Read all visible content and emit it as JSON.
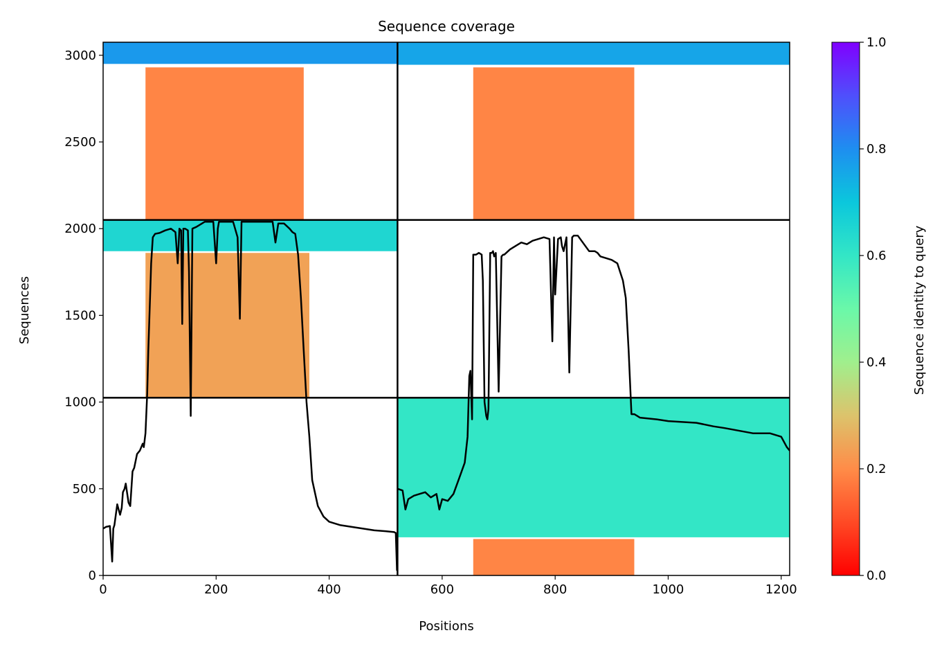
{
  "chart_data": {
    "type": "heatmap",
    "title": "Sequence coverage",
    "xlabel": "Positions",
    "ylabel": "Sequences",
    "xlim": [
      0,
      1215
    ],
    "ylim": [
      0,
      3075
    ],
    "xticks": [
      0,
      200,
      400,
      600,
      800,
      1000,
      1200
    ],
    "yticks": [
      0,
      500,
      1000,
      1500,
      2000,
      2500,
      3000
    ],
    "colorbar": {
      "label": "Sequence identity to query",
      "range": [
        0.0,
        1.0
      ],
      "ticks": [
        "0.0",
        "0.2",
        "0.4",
        "0.6",
        "0.8",
        "1.0"
      ],
      "colormap": "rainbow_r"
    },
    "chain_boundaries": {
      "vertical_x": [
        521
      ],
      "horizontal_y": [
        1025,
        2050
      ]
    },
    "blocks": [
      {
        "name": "chain1-query-cluster",
        "x": [
          0,
          521
        ],
        "y": [
          2950,
          3075
        ],
        "identity": 0.78
      },
      {
        "name": "chain1-main",
        "x": [
          75,
          355
        ],
        "y": [
          2050,
          2930
        ],
        "identity": 0.19
      },
      {
        "name": "chain2-query-cluster",
        "x": [
          521,
          1215
        ],
        "y": [
          2945,
          3075
        ],
        "identity": 0.76
      },
      {
        "name": "chain2-main",
        "x": [
          655,
          940
        ],
        "y": [
          2050,
          2930
        ],
        "identity": 0.19
      },
      {
        "name": "chain3-query-cluster",
        "x": [
          0,
          521
        ],
        "y": [
          1870,
          2050
        ],
        "identity": 0.65
      },
      {
        "name": "chain3-main",
        "x": [
          75,
          365
        ],
        "y": [
          1025,
          1860
        ],
        "identity": 0.24
      },
      {
        "name": "chain3-ext-cluster",
        "x": [
          521,
          1215
        ],
        "y": [
          220,
          1025
        ],
        "identity": 0.6
      },
      {
        "name": "chain3-tail",
        "x": [
          655,
          940
        ],
        "y": [
          0,
          210
        ],
        "identity": 0.19
      }
    ],
    "series": [
      {
        "type": "line",
        "color": "#000000",
        "x": [
          0,
          5,
          12,
          16,
          18,
          20,
          25,
          30,
          33,
          35,
          38,
          40,
          45,
          48,
          52,
          55,
          60,
          65,
          70,
          72,
          75,
          78,
          80,
          83,
          85,
          88,
          92,
          100,
          110,
          120,
          128,
          132,
          135,
          138,
          140,
          142,
          145,
          150,
          152,
          155,
          158,
          165,
          180,
          195,
          200,
          203,
          205,
          210,
          220,
          230,
          238,
          242,
          245,
          250,
          260,
          280,
          290,
          300,
          305,
          310,
          320,
          330,
          335,
          340,
          345,
          350,
          355,
          360,
          365,
          370,
          380,
          390,
          400,
          420,
          440,
          460,
          480,
          500,
          515,
          518,
          520,
          521
        ],
        "y": [
          270,
          280,
          285,
          80,
          270,
          290,
          410,
          350,
          390,
          480,
          500,
          530,
          420,
          400,
          600,
          620,
          700,
          720,
          760,
          740,
          820,
          1050,
          1300,
          1600,
          1800,
          1950,
          1970,
          1975,
          1990,
          2000,
          1980,
          1800,
          2000,
          1990,
          1450,
          2000,
          2000,
          1990,
          1750,
          920,
          2000,
          2010,
          2040,
          2040,
          1800,
          2000,
          2040,
          2040,
          2040,
          2040,
          1950,
          1480,
          2040,
          2040,
          2040,
          2040,
          2040,
          2040,
          1920,
          2030,
          2030,
          2000,
          1980,
          1970,
          1850,
          1600,
          1300,
          1000,
          800,
          550,
          400,
          340,
          310,
          290,
          280,
          270,
          260,
          255,
          250,
          245,
          30,
          30
        ]
      },
      {
        "type": "line",
        "color": "#000000",
        "x": [
          521,
          530,
          535,
          540,
          550,
          560,
          570,
          580,
          590,
          595,
          600,
          610,
          620,
          630,
          640,
          645,
          648,
          650,
          653,
          655,
          660,
          665,
          670,
          672,
          675,
          678,
          680,
          682,
          685,
          688,
          690,
          692,
          695,
          700,
          705,
          708,
          710,
          720,
          730,
          740,
          750,
          760,
          770,
          780,
          790,
          795,
          798,
          800,
          805,
          810,
          812,
          815,
          820,
          825,
          830,
          833,
          835,
          838,
          840,
          860,
          870,
          875,
          880,
          890,
          900,
          910,
          920,
          925,
          930,
          935,
          940,
          945,
          950,
          980,
          1000,
          1050,
          1080,
          1100,
          1150,
          1170,
          1180,
          1200,
          1210,
          1215
        ],
        "y": [
          500,
          490,
          380,
          440,
          460,
          470,
          480,
          450,
          470,
          380,
          440,
          430,
          470,
          560,
          650,
          800,
          1150,
          1180,
          900,
          1850,
          1850,
          1860,
          1850,
          1700,
          1000,
          920,
          900,
          960,
          1860,
          1860,
          1870,
          1840,
          1860,
          1060,
          1840,
          1850,
          1850,
          1880,
          1900,
          1920,
          1910,
          1930,
          1940,
          1950,
          1940,
          1350,
          1950,
          1620,
          1940,
          1950,
          1900,
          1870,
          1950,
          1170,
          1950,
          1960,
          1960,
          1960,
          1960,
          1870,
          1870,
          1860,
          1840,
          1830,
          1820,
          1800,
          1700,
          1600,
          1300,
          930,
          930,
          920,
          910,
          900,
          890,
          880,
          860,
          850,
          820,
          820,
          820,
          800,
          740,
          720
        ]
      }
    ]
  }
}
